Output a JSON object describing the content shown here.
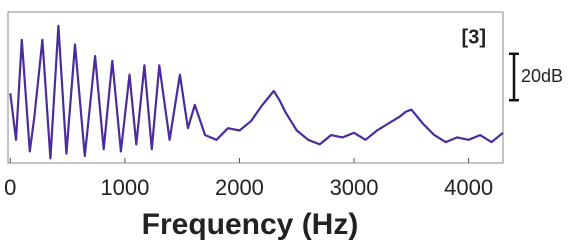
{
  "chart_data": {
    "type": "line",
    "annotation": "[3]",
    "x_label": "Frequency (Hz)",
    "scale_bar": {
      "value": 20,
      "label": "20dB"
    },
    "x": [
      0,
      50,
      100,
      170,
      210,
      280,
      350,
      420,
      490,
      565,
      650,
      740,
      815,
      890,
      965,
      1040,
      1100,
      1170,
      1235,
      1300,
      1390,
      1480,
      1550,
      1610,
      1700,
      1800,
      1900,
      2000,
      2100,
      2200,
      2250,
      2300,
      2350,
      2400,
      2500,
      2600,
      2700,
      2800,
      2900,
      3000,
      3100,
      3200,
      3300,
      3400,
      3450,
      3500,
      3550,
      3600,
      3700,
      3800,
      3900,
      4000,
      4100,
      4200,
      4300
    ],
    "series": [
      {
        "color": "#4a2c9c",
        "values": [
          30,
          10,
          53,
          5,
          20,
          53,
          2,
          59,
          4,
          51,
          3,
          46,
          6,
          44,
          5,
          38,
          8,
          42,
          6,
          42,
          10,
          38,
          15,
          25,
          12,
          10,
          15,
          14,
          18,
          25,
          28,
          31,
          27,
          22,
          14,
          10,
          8,
          12,
          11,
          13,
          10,
          14,
          17,
          20,
          22,
          23,
          20,
          17,
          12,
          9,
          11,
          10,
          12,
          9,
          13
        ]
      }
    ],
    "xlim": [
      -20,
      4300
    ],
    "ylim": [
      0,
      65
    ],
    "xticks": [
      0,
      1000,
      2000,
      3000,
      4000
    ]
  }
}
